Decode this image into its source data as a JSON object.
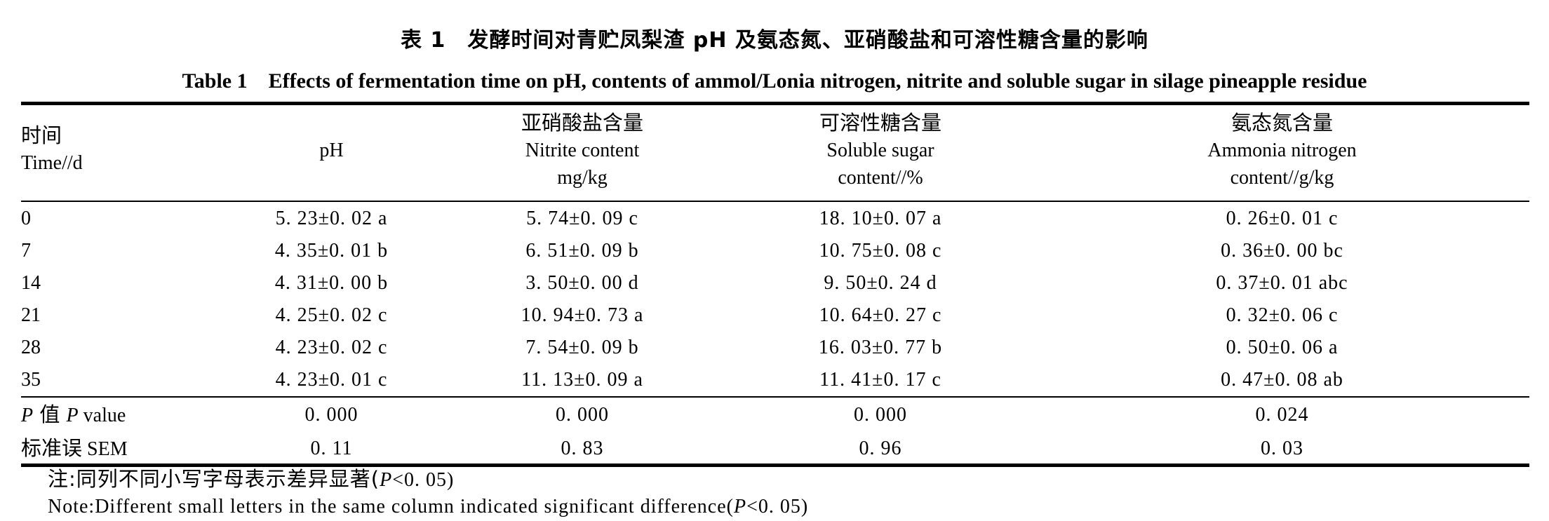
{
  "title": {
    "cn": "表 1　发酵时间对青贮凤梨渣 pH 及氨态氮、亚硝酸盐和可溶性糖含量的影响",
    "en": "Table 1　Effects of fermentation time on pH, contents of ammol/Lonia nitrogen, nitrite and soluble sugar in silage pineapple residue"
  },
  "headers": {
    "time": {
      "cn": "时间",
      "en": "Time//d"
    },
    "ph": {
      "en": "pH"
    },
    "nitrite": {
      "cn": "亚硝酸盐含量",
      "en1": "Nitrite content",
      "en2": "mg/kg"
    },
    "sugar": {
      "cn": "可溶性糖含量",
      "en1": "Soluble sugar",
      "en2": "content//%"
    },
    "ammonia": {
      "cn": "氨态氮含量",
      "en1": "Ammonia nitrogen",
      "en2": "content//g/kg"
    }
  },
  "rows": [
    {
      "time": "0",
      "ph": "5. 23±0. 02 a",
      "nitrite": "5. 74±0. 09 c",
      "sugar": "18. 10±0. 07 a",
      "ammonia": "0. 26±0. 01 c"
    },
    {
      "time": "7",
      "ph": "4. 35±0. 01 b",
      "nitrite": "6. 51±0. 09 b",
      "sugar": "10. 75±0. 08 c",
      "ammonia": "0. 36±0. 00 bc"
    },
    {
      "time": "14",
      "ph": "4. 31±0. 00 b",
      "nitrite": "3. 50±0. 00 d",
      "sugar": "9. 50±0. 24 d",
      "ammonia": "0. 37±0. 01 abc"
    },
    {
      "time": "21",
      "ph": "4. 25±0. 02 c",
      "nitrite": "10. 94±0. 73 a",
      "sugar": "10. 64±0. 27 c",
      "ammonia": "0. 32±0. 06 c"
    },
    {
      "time": "28",
      "ph": "4. 23±0. 02 c",
      "nitrite": "7. 54±0. 09 b",
      "sugar": "16. 03±0. 77 b",
      "ammonia": "0. 50±0. 06 a"
    },
    {
      "time": "35",
      "ph": "4. 23±0. 01 c",
      "nitrite": "11. 13±0. 09 a",
      "sugar": "11. 41±0. 17 c",
      "ammonia": "0. 47±0. 08 ab"
    }
  ],
  "pvalue": {
    "label_cn_p": "P",
    "label_cn_rest": " 值 ",
    "label_en_p": "P",
    "label_en_rest": " value",
    "ph": "0. 000",
    "nitrite": "0. 000",
    "sugar": "0. 000",
    "ammonia": "0. 024"
  },
  "sem": {
    "label_cn": "标准误",
    "label_en": " SEM",
    "ph": "0. 11",
    "nitrite": "0. 83",
    "sugar": "0. 96",
    "ammonia": "0. 03"
  },
  "notes": {
    "cn_prefix": "注:同列不同小写字母表示差异显著(",
    "cn_p": "P",
    "cn_suffix": "<0. 05)",
    "en_prefix": "Note:Different small letters in the same column indicated significant difference(",
    "en_p": "P",
    "en_suffix": "<0. 05)"
  }
}
